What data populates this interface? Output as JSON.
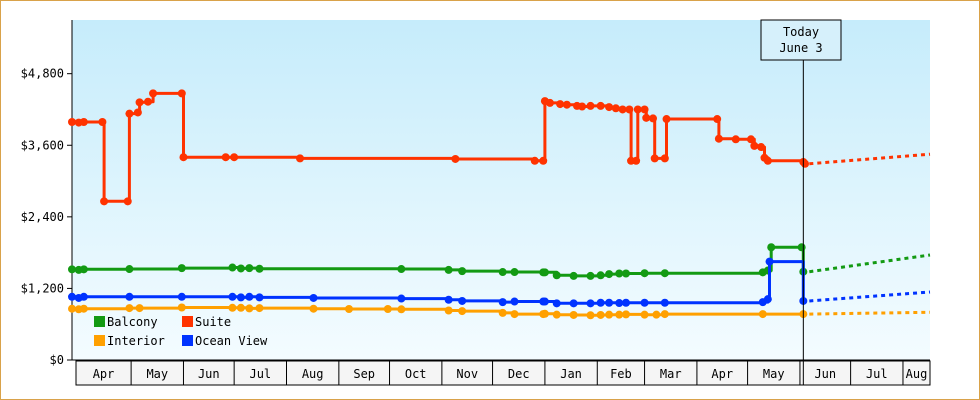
{
  "chart_data": {
    "type": "line",
    "title": "",
    "xlabel": "",
    "ylabel": "",
    "x_axis_months": [
      "Apr",
      "May",
      "Jun",
      "Jul",
      "Aug",
      "Sep",
      "Oct",
      "Nov",
      "Dec",
      "Jan",
      "Feb",
      "Mar",
      "Apr",
      "May",
      "Jun",
      "Jul",
      "Aug"
    ],
    "x_range": [
      "2024-03-27",
      "2025-08-17"
    ],
    "y_ticks": [
      {
        "value": 0,
        "label": "$0"
      },
      {
        "value": 1200,
        "label": "$1,200"
      },
      {
        "value": 2400,
        "label": "$2,400"
      },
      {
        "value": 3600,
        "label": "$3,600"
      },
      {
        "value": 4800,
        "label": "$4,800"
      }
    ],
    "ylim": [
      0,
      5700
    ],
    "today_marker": {
      "line1": "Today",
      "line2": "June 3",
      "date": "2025-06-03"
    },
    "legend": {
      "placement": "bottom-left"
    },
    "series": [
      {
        "name": "Suite",
        "color": "#ff3300",
        "points": [
          [
            "2024-03-27",
            3990
          ],
          [
            "2024-03-31",
            3980
          ],
          [
            "2024-04-03",
            3990
          ],
          [
            "2024-04-14",
            3990
          ],
          [
            "2024-04-15",
            2660
          ],
          [
            "2024-04-29",
            2660
          ],
          [
            "2024-04-30",
            4130
          ],
          [
            "2024-05-05",
            4150
          ],
          [
            "2024-05-06",
            4320
          ],
          [
            "2024-05-11",
            4330
          ],
          [
            "2024-05-14",
            4470
          ],
          [
            "2024-05-31",
            4470
          ],
          [
            "2024-06-01",
            3400
          ],
          [
            "2024-06-26",
            3400
          ],
          [
            "2024-07-01",
            3400
          ],
          [
            "2024-08-09",
            3380
          ],
          [
            "2024-11-09",
            3370
          ],
          [
            "2024-12-26",
            3340
          ],
          [
            "2024-12-31",
            3340
          ],
          [
            "2025-01-01",
            4340
          ],
          [
            "2025-01-04",
            4310
          ],
          [
            "2025-01-10",
            4290
          ],
          [
            "2025-01-14",
            4280
          ],
          [
            "2025-01-20",
            4260
          ],
          [
            "2025-01-23",
            4250
          ],
          [
            "2025-01-28",
            4260
          ],
          [
            "2025-02-03",
            4260
          ],
          [
            "2025-02-08",
            4240
          ],
          [
            "2025-02-12",
            4220
          ],
          [
            "2025-02-16",
            4200
          ],
          [
            "2025-02-20",
            4200
          ],
          [
            "2025-02-21",
            3340
          ],
          [
            "2025-02-24",
            3340
          ],
          [
            "2025-02-25",
            4200
          ],
          [
            "2025-03-01",
            4200
          ],
          [
            "2025-03-02",
            4060
          ],
          [
            "2025-03-06",
            4050
          ],
          [
            "2025-03-07",
            3380
          ],
          [
            "2025-03-13",
            3380
          ],
          [
            "2025-03-14",
            4040
          ],
          [
            "2025-04-13",
            4040
          ],
          [
            "2025-04-14",
            3710
          ],
          [
            "2025-04-24",
            3700
          ],
          [
            "2025-05-03",
            3700
          ],
          [
            "2025-05-05",
            3590
          ],
          [
            "2025-05-09",
            3570
          ],
          [
            "2025-05-11",
            3390
          ],
          [
            "2025-05-13",
            3340
          ],
          [
            "2025-06-03",
            3320
          ],
          [
            "2025-06-04",
            3290
          ]
        ],
        "projection": [
          [
            "2025-06-03",
            3290
          ],
          [
            "2025-08-17",
            3450
          ]
        ]
      },
      {
        "name": "Balcony",
        "color": "#139a13",
        "points": [
          [
            "2024-03-27",
            1520
          ],
          [
            "2024-03-31",
            1510
          ],
          [
            "2024-04-03",
            1520
          ],
          [
            "2024-04-30",
            1525
          ],
          [
            "2024-05-31",
            1540
          ],
          [
            "2024-06-30",
            1550
          ],
          [
            "2024-07-05",
            1535
          ],
          [
            "2024-07-10",
            1540
          ],
          [
            "2024-07-16",
            1530
          ],
          [
            "2024-10-08",
            1525
          ],
          [
            "2024-11-05",
            1510
          ],
          [
            "2024-11-13",
            1490
          ],
          [
            "2024-12-07",
            1475
          ],
          [
            "2024-12-14",
            1475
          ],
          [
            "2024-12-31",
            1470
          ],
          [
            "2025-01-01",
            1470
          ],
          [
            "2025-01-08",
            1420
          ],
          [
            "2025-01-18",
            1410
          ],
          [
            "2025-01-28",
            1410
          ],
          [
            "2025-02-03",
            1420
          ],
          [
            "2025-02-08",
            1440
          ],
          [
            "2025-02-14",
            1450
          ],
          [
            "2025-02-18",
            1450
          ],
          [
            "2025-03-01",
            1455
          ],
          [
            "2025-03-13",
            1455
          ],
          [
            "2025-05-10",
            1470
          ],
          [
            "2025-05-13",
            1500
          ],
          [
            "2025-05-15",
            1890
          ],
          [
            "2025-06-02",
            1890
          ],
          [
            "2025-06-03",
            1480
          ]
        ],
        "projection": [
          [
            "2025-06-03",
            1480
          ],
          [
            "2025-08-17",
            1760
          ]
        ]
      },
      {
        "name": "Ocean View",
        "color": "#0033ff",
        "points": [
          [
            "2024-03-27",
            1060
          ],
          [
            "2024-03-31",
            1040
          ],
          [
            "2024-04-03",
            1060
          ],
          [
            "2024-04-30",
            1060
          ],
          [
            "2024-05-31",
            1060
          ],
          [
            "2024-06-30",
            1060
          ],
          [
            "2024-07-05",
            1050
          ],
          [
            "2024-07-10",
            1060
          ],
          [
            "2024-07-16",
            1050
          ],
          [
            "2024-08-17",
            1040
          ],
          [
            "2024-10-08",
            1030
          ],
          [
            "2024-11-05",
            1010
          ],
          [
            "2024-11-13",
            990
          ],
          [
            "2024-12-07",
            970
          ],
          [
            "2024-12-14",
            980
          ],
          [
            "2024-12-31",
            980
          ],
          [
            "2025-01-01",
            980
          ],
          [
            "2025-01-08",
            950
          ],
          [
            "2025-01-18",
            950
          ],
          [
            "2025-01-28",
            950
          ],
          [
            "2025-02-03",
            960
          ],
          [
            "2025-02-08",
            960
          ],
          [
            "2025-02-14",
            955
          ],
          [
            "2025-02-18",
            960
          ],
          [
            "2025-03-01",
            960
          ],
          [
            "2025-03-13",
            960
          ],
          [
            "2025-05-10",
            970
          ],
          [
            "2025-05-13",
            1020
          ],
          [
            "2025-05-14",
            1650
          ],
          [
            "2025-06-03",
            990
          ]
        ],
        "projection": [
          [
            "2025-06-03",
            990
          ],
          [
            "2025-08-17",
            1140
          ]
        ]
      },
      {
        "name": "Interior",
        "color": "#ffa000",
        "points": [
          [
            "2024-03-27",
            860
          ],
          [
            "2024-03-31",
            850
          ],
          [
            "2024-04-03",
            860
          ],
          [
            "2024-04-30",
            870
          ],
          [
            "2024-05-06",
            870
          ],
          [
            "2024-05-31",
            880
          ],
          [
            "2024-06-30",
            875
          ],
          [
            "2024-07-05",
            875
          ],
          [
            "2024-07-10",
            865
          ],
          [
            "2024-07-16",
            870
          ],
          [
            "2024-08-17",
            860
          ],
          [
            "2024-09-07",
            855
          ],
          [
            "2024-09-30",
            855
          ],
          [
            "2024-10-08",
            850
          ],
          [
            "2024-11-05",
            830
          ],
          [
            "2024-11-13",
            820
          ],
          [
            "2024-12-07",
            790
          ],
          [
            "2024-12-14",
            770
          ],
          [
            "2024-12-31",
            770
          ],
          [
            "2025-01-01",
            775
          ],
          [
            "2025-01-08",
            760
          ],
          [
            "2025-01-18",
            755
          ],
          [
            "2025-01-28",
            750
          ],
          [
            "2025-02-03",
            755
          ],
          [
            "2025-02-08",
            760
          ],
          [
            "2025-02-14",
            760
          ],
          [
            "2025-02-18",
            765
          ],
          [
            "2025-03-01",
            760
          ],
          [
            "2025-03-08",
            760
          ],
          [
            "2025-03-13",
            770
          ],
          [
            "2025-05-10",
            770
          ],
          [
            "2025-06-03",
            770
          ]
        ],
        "projection": [
          [
            "2025-06-03",
            770
          ],
          [
            "2025-08-17",
            800
          ]
        ]
      }
    ]
  }
}
